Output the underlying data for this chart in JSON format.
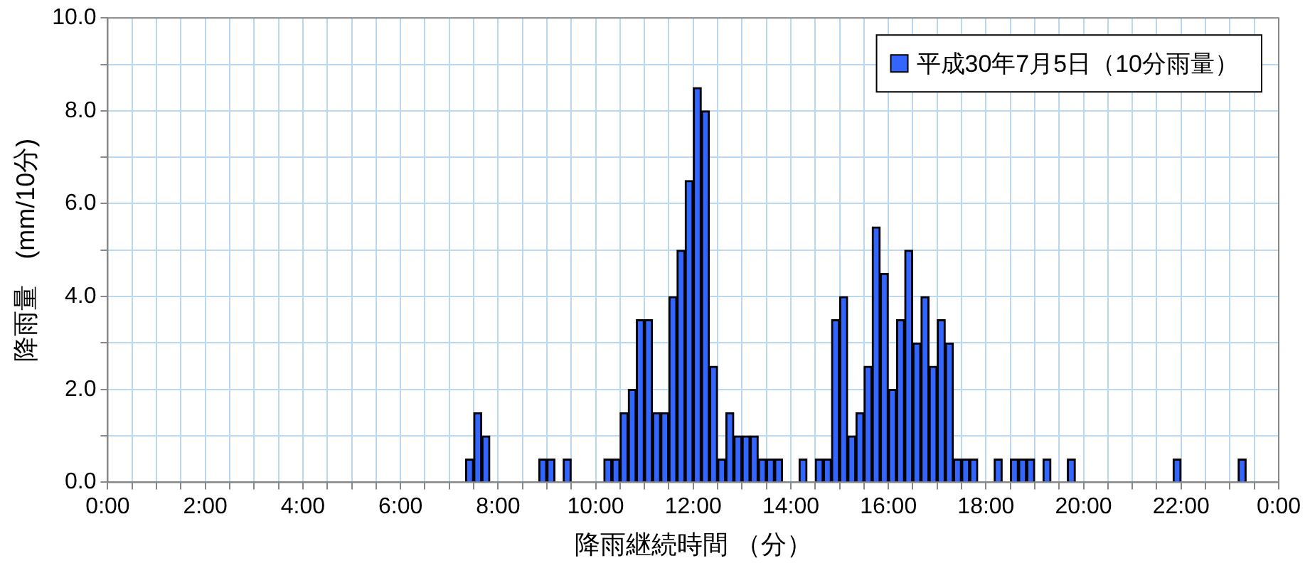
{
  "chart_data": {
    "type": "bar",
    "xlabel": "降雨継続時間 （分）",
    "ylabel": "降雨量　(mm/10分)",
    "series": [
      {
        "name": "平成30年7月5日（10分雨量）",
        "color": "#3366ff",
        "x": [
          7.4167,
          7.5833,
          7.75,
          8.9167,
          9.0833,
          9.4167,
          10.25,
          10.4167,
          10.5833,
          10.75,
          10.9167,
          11.0833,
          11.25,
          11.4167,
          11.5833,
          11.75,
          11.9167,
          12.0833,
          12.25,
          12.4167,
          12.5833,
          12.75,
          12.9167,
          13.0833,
          13.25,
          13.4167,
          13.5833,
          13.75,
          14.25,
          14.5833,
          14.75,
          14.9167,
          15.0833,
          15.25,
          15.4167,
          15.5833,
          15.75,
          15.9167,
          16.0833,
          16.25,
          16.4167,
          16.5833,
          16.75,
          16.9167,
          17.0833,
          17.25,
          17.4167,
          17.5833,
          17.75,
          18.25,
          18.5833,
          18.75,
          18.9167,
          19.25,
          19.75,
          21.9167,
          23.25
        ],
        "values": [
          0.5,
          1.5,
          1.0,
          0.5,
          0.5,
          0.5,
          0.5,
          0.5,
          1.5,
          2.0,
          3.5,
          3.5,
          1.5,
          1.5,
          4.0,
          5.0,
          6.5,
          8.5,
          8.0,
          2.5,
          0.5,
          1.5,
          1.0,
          1.0,
          1.0,
          0.5,
          0.5,
          0.5,
          0.5,
          0.5,
          0.5,
          3.5,
          4.0,
          1.0,
          1.5,
          2.5,
          5.5,
          4.5,
          2.0,
          3.5,
          5.0,
          3.0,
          4.0,
          2.5,
          3.5,
          3.0,
          0.5,
          0.5,
          0.5,
          0.5,
          0.5,
          0.5,
          0.5,
          0.5,
          0.5,
          0.5,
          0.5
        ]
      }
    ],
    "xlim": [
      0,
      24
    ],
    "xticks": [
      {
        "value": 0,
        "label": "0:00"
      },
      {
        "value": 0.5,
        "label": null
      },
      {
        "value": 1,
        "label": null
      },
      {
        "value": 1.5,
        "label": null
      },
      {
        "value": 2,
        "label": "2:00"
      },
      {
        "value": 2.5,
        "label": null
      },
      {
        "value": 3,
        "label": null
      },
      {
        "value": 3.5,
        "label": null
      },
      {
        "value": 4,
        "label": "4:00"
      },
      {
        "value": 4.5,
        "label": null
      },
      {
        "value": 5,
        "label": null
      },
      {
        "value": 5.5,
        "label": null
      },
      {
        "value": 6,
        "label": "6:00"
      },
      {
        "value": 6.5,
        "label": null
      },
      {
        "value": 7,
        "label": null
      },
      {
        "value": 7.5,
        "label": null
      },
      {
        "value": 8,
        "label": "8:00"
      },
      {
        "value": 8.5,
        "label": null
      },
      {
        "value": 9,
        "label": null
      },
      {
        "value": 9.5,
        "label": null
      },
      {
        "value": 10,
        "label": "10:00"
      },
      {
        "value": 10.5,
        "label": null
      },
      {
        "value": 11,
        "label": null
      },
      {
        "value": 11.5,
        "label": null
      },
      {
        "value": 12,
        "label": "12:00"
      },
      {
        "value": 12.5,
        "label": null
      },
      {
        "value": 13,
        "label": null
      },
      {
        "value": 13.5,
        "label": null
      },
      {
        "value": 14,
        "label": "14:00"
      },
      {
        "value": 14.5,
        "label": null
      },
      {
        "value": 15,
        "label": null
      },
      {
        "value": 15.5,
        "label": null
      },
      {
        "value": 16,
        "label": "16:00"
      },
      {
        "value": 16.5,
        "label": null
      },
      {
        "value": 17,
        "label": null
      },
      {
        "value": 17.5,
        "label": null
      },
      {
        "value": 18,
        "label": "18:00"
      },
      {
        "value": 18.5,
        "label": null
      },
      {
        "value": 19,
        "label": null
      },
      {
        "value": 19.5,
        "label": null
      },
      {
        "value": 20,
        "label": "20:00"
      },
      {
        "value": 20.5,
        "label": null
      },
      {
        "value": 21,
        "label": null
      },
      {
        "value": 21.5,
        "label": null
      },
      {
        "value": 22,
        "label": "22:00"
      },
      {
        "value": 22.5,
        "label": null
      },
      {
        "value": 23,
        "label": null
      },
      {
        "value": 23.5,
        "label": null
      },
      {
        "value": 24,
        "label": "0:00"
      }
    ],
    "ylim": [
      0,
      10
    ],
    "yticks": [
      {
        "value": 0,
        "label": "0.0"
      },
      {
        "value": 1,
        "label": null
      },
      {
        "value": 2,
        "label": "2.0"
      },
      {
        "value": 3,
        "label": null
      },
      {
        "value": 4,
        "label": "4.0"
      },
      {
        "value": 5,
        "label": null
      },
      {
        "value": 6,
        "label": "6.0"
      },
      {
        "value": 7,
        "label": null
      },
      {
        "value": 8,
        "label": "8.0"
      },
      {
        "value": 9,
        "label": null
      },
      {
        "value": 10,
        "label": "10.0"
      }
    ],
    "grid": true,
    "legend": "top right"
  }
}
